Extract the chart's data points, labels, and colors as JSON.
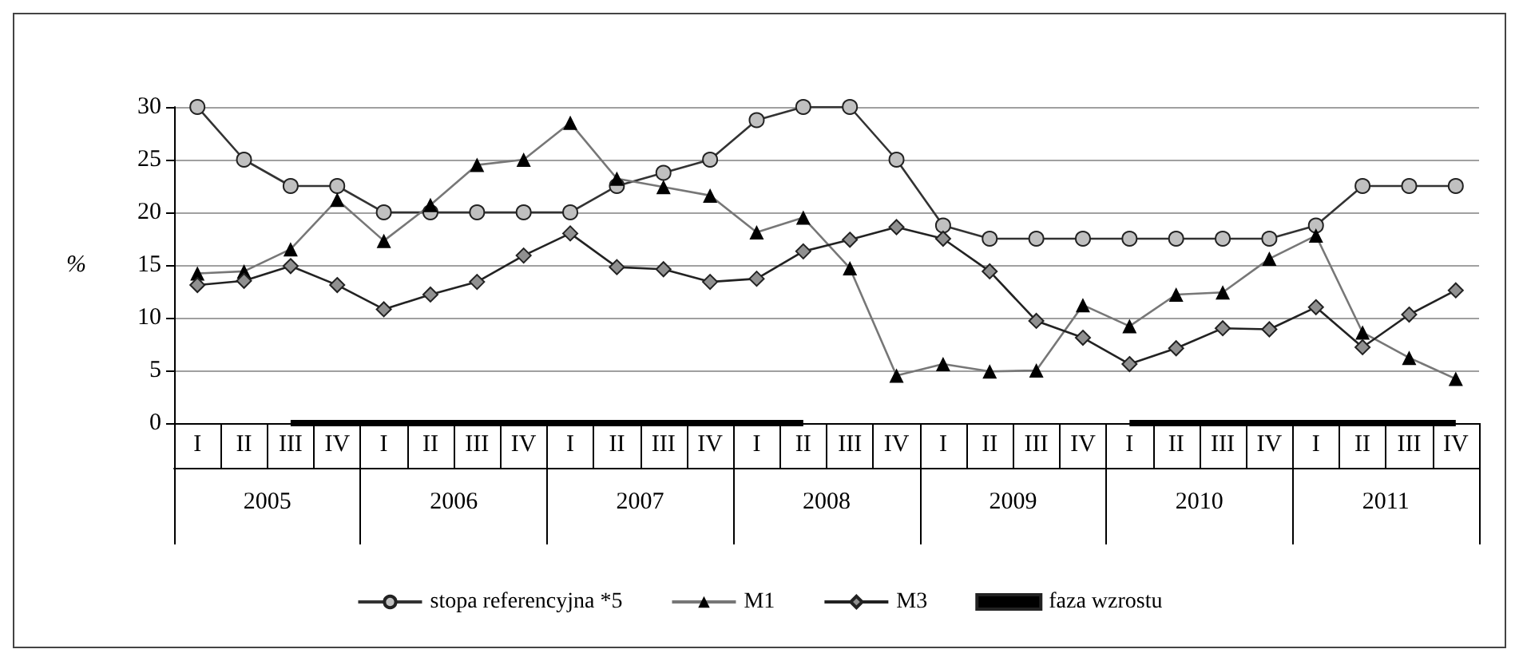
{
  "chart_data": {
    "type": "line",
    "ylabel": "%",
    "categories": [
      "I",
      "II",
      "III",
      "IV",
      "I",
      "II",
      "III",
      "IV",
      "I",
      "II",
      "III",
      "IV",
      "I",
      "II",
      "III",
      "IV",
      "I",
      "II",
      "III",
      "IV",
      "I",
      "II",
      "III",
      "IV",
      "I",
      "II",
      "III",
      "IV"
    ],
    "annotations": [
      "2005",
      "2006",
      "2007",
      "2008",
      "2009",
      "2010",
      "2011"
    ],
    "series": [
      {
        "name": "stopa referencyjna *5",
        "color": "#c0c0c0",
        "marker": "circle",
        "values": [
          30,
          25,
          22.5,
          22.5,
          20,
          20,
          20,
          20,
          20,
          22.5,
          23.75,
          25,
          28.75,
          30,
          30,
          25,
          18.75,
          17.5,
          17.5,
          17.5,
          17.5,
          17.5,
          17.5,
          17.5,
          18.75,
          22.5,
          22.5,
          22.5
        ]
      },
      {
        "name": "M1",
        "color": "#000000",
        "marker": "triangle",
        "values": [
          14.2,
          14.4,
          16.5,
          21.2,
          17.3,
          20.7,
          24.5,
          25,
          28.5,
          23.2,
          22.4,
          21.6,
          18.1,
          19.5,
          14.7,
          4.5,
          5.6,
          4.9,
          5.0,
          11.2,
          9.2,
          12.2,
          12.4,
          15.6,
          17.8,
          8.6,
          6.2,
          4.2
        ]
      },
      {
        "name": "M3",
        "color": "#909090",
        "marker": "diamond",
        "values": [
          13.1,
          13.5,
          14.9,
          13.1,
          10.8,
          12.2,
          13.4,
          15.9,
          18.0,
          14.8,
          14.6,
          13.4,
          13.7,
          16.3,
          17.4,
          18.6,
          17.5,
          14.4,
          9.7,
          8.1,
          5.6,
          7.1,
          9.0,
          8.9,
          11.0,
          7.2,
          10.3,
          12.6
        ]
      },
      {
        "name": "faza wzrostu",
        "color": "#000000",
        "marker": "none",
        "values": [
          null,
          null,
          0,
          0,
          0,
          0,
          0,
          0,
          0,
          0,
          0,
          0,
          0,
          0,
          null,
          null,
          null,
          null,
          null,
          null,
          0,
          0,
          0,
          0,
          0,
          0,
          0,
          0
        ]
      }
    ],
    "ylim": [
      0,
      30
    ],
    "yticks": [
      0,
      5,
      10,
      15,
      20,
      25,
      30
    ],
    "grid": "y",
    "legend": "bottom"
  }
}
